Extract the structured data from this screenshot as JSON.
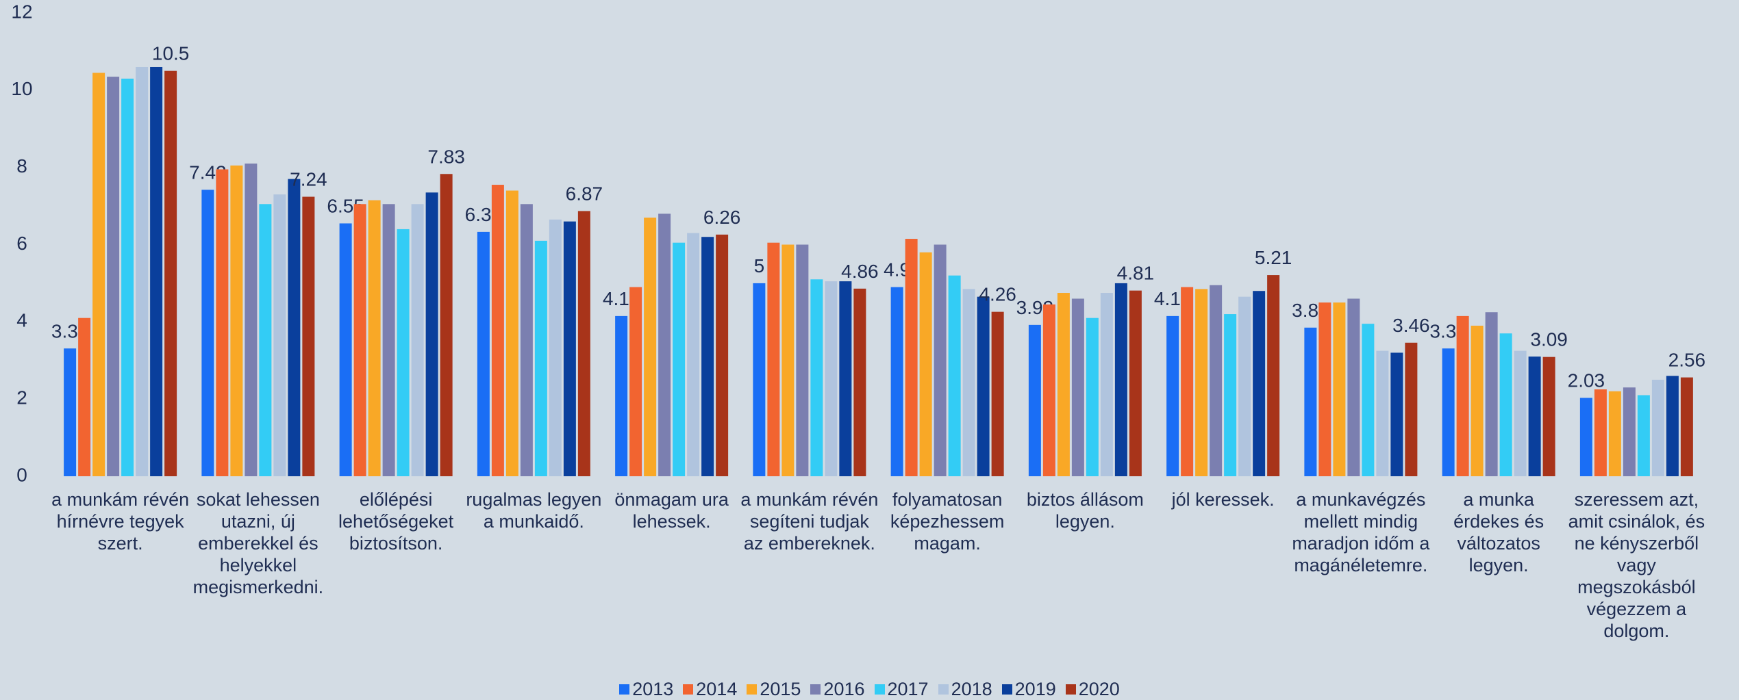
{
  "chart_data": {
    "type": "bar",
    "categories": [
      "a munkám révén hírnévre tegyek szert.",
      "sokat lehessen utazni, új emberekkel és helyekkel megismerkedni.",
      "előlépési lehetőségeket biztosítson.",
      "rugalmas legyen a munkaidő.",
      "önmagam ura lehessek.",
      "a munkám révén segíteni tudjak az embereknek.",
      "folyamatosan képezhessem magam.",
      "biztos állásom legyen.",
      "jól keressek.",
      "a munkavégzés mellett mindig maradjon időm a magánéletemre.",
      "a munka érdekes és változatos legyen.",
      "szeressem azt, amit csinálok, és ne kényszerből vagy megszokásból végezzem a dolgom."
    ],
    "series": [
      {
        "name": "2013",
        "color": "#1a6ef5",
        "data_labels": true,
        "values": [
          3.31,
          7.42,
          6.55,
          6.33,
          4.15,
          5,
          4.9,
          3.92,
          4.15,
          3.85,
          3.31,
          2.03
        ]
      },
      {
        "name": "2014",
        "color": "#f26430",
        "data_labels": false,
        "values": [
          4.1,
          7.95,
          7.05,
          7.55,
          4.9,
          6.05,
          6.15,
          4.45,
          4.9,
          4.5,
          4.15,
          2.25
        ]
      },
      {
        "name": "2015",
        "color": "#f9a826",
        "data_labels": false,
        "values": [
          10.45,
          8.05,
          7.15,
          7.4,
          6.7,
          6.0,
          5.8,
          4.75,
          4.85,
          4.5,
          3.9,
          2.2
        ]
      },
      {
        "name": "2016",
        "color": "#7b7fb0",
        "data_labels": false,
        "values": [
          10.35,
          8.1,
          7.05,
          7.05,
          6.8,
          6.0,
          6.0,
          4.6,
          4.95,
          4.6,
          4.25,
          2.3
        ]
      },
      {
        "name": "2017",
        "color": "#33ccf5",
        "data_labels": false,
        "values": [
          10.3,
          7.05,
          6.4,
          6.1,
          6.05,
          5.1,
          5.2,
          4.1,
          4.2,
          3.95,
          3.7,
          2.1
        ]
      },
      {
        "name": "2018",
        "color": "#b0c4de",
        "data_labels": false,
        "values": [
          10.6,
          7.3,
          7.05,
          6.65,
          6.3,
          5.05,
          4.85,
          4.75,
          4.65,
          3.25,
          3.25,
          2.5
        ]
      },
      {
        "name": "2019",
        "color": "#0a3f9c",
        "data_labels": false,
        "values": [
          10.6,
          7.7,
          7.35,
          6.6,
          6.2,
          5.05,
          4.65,
          5.0,
          4.8,
          3.2,
          3.1,
          2.6
        ]
      },
      {
        "name": "2020",
        "color": "#a8341a",
        "data_labels": true,
        "values": [
          10.5,
          7.24,
          7.83,
          6.87,
          6.26,
          4.86,
          4.26,
          4.81,
          5.21,
          3.46,
          3.09,
          2.56
        ]
      }
    ],
    "ylim": [
      0,
      12
    ],
    "yticks": [
      0,
      2,
      4,
      6,
      8,
      10,
      12
    ],
    "grid": false,
    "legend": "bottom"
  }
}
